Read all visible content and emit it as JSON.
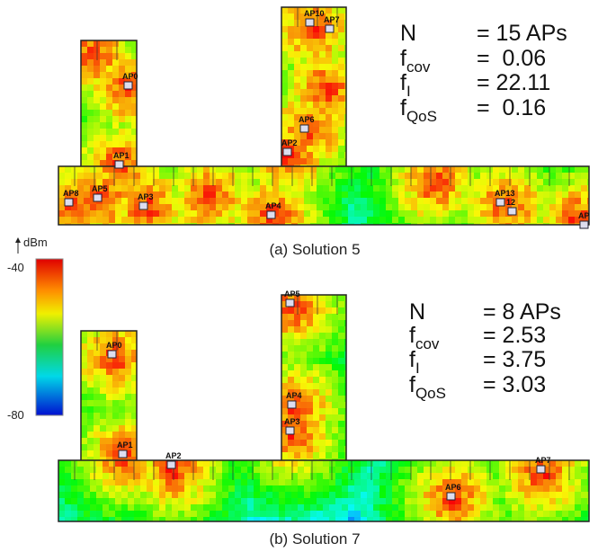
{
  "colorbar": {
    "unit": "dBm",
    "max": -40,
    "min": -80
  },
  "panels": [
    {
      "caption": "(a) Solution 5",
      "metrics": [
        {
          "symbol": "N",
          "value": "= 15 APs"
        },
        {
          "symbol": "f",
          "subscript": "cov",
          "value": "=  0.06"
        },
        {
          "symbol": "f",
          "subscript": "I",
          "value": "= 22.11"
        },
        {
          "symbol": "f",
          "subscript": "QoS",
          "value": "=  0.16"
        }
      ],
      "access_points": [
        "AP10",
        "AP7",
        "AP0",
        "AP6",
        "AP2",
        "AP1",
        "AP8",
        "AP5",
        "AP3",
        "AP4",
        "AP13",
        "12",
        "AP"
      ]
    },
    {
      "caption": "(b) Solution 7",
      "metrics": [
        {
          "symbol": "N",
          "value": "= 8 APs"
        },
        {
          "symbol": "f",
          "subscript": "cov",
          "value": "= 2.53"
        },
        {
          "symbol": "f",
          "subscript": "I",
          "value": "= 3.75"
        },
        {
          "symbol": "f",
          "subscript": "QoS",
          "value": "= 3.03"
        }
      ],
      "access_points": [
        "AP5",
        "AP0",
        "AP4",
        "AP3",
        "AP1",
        "AP2",
        "AP6",
        "AP7"
      ]
    }
  ]
}
